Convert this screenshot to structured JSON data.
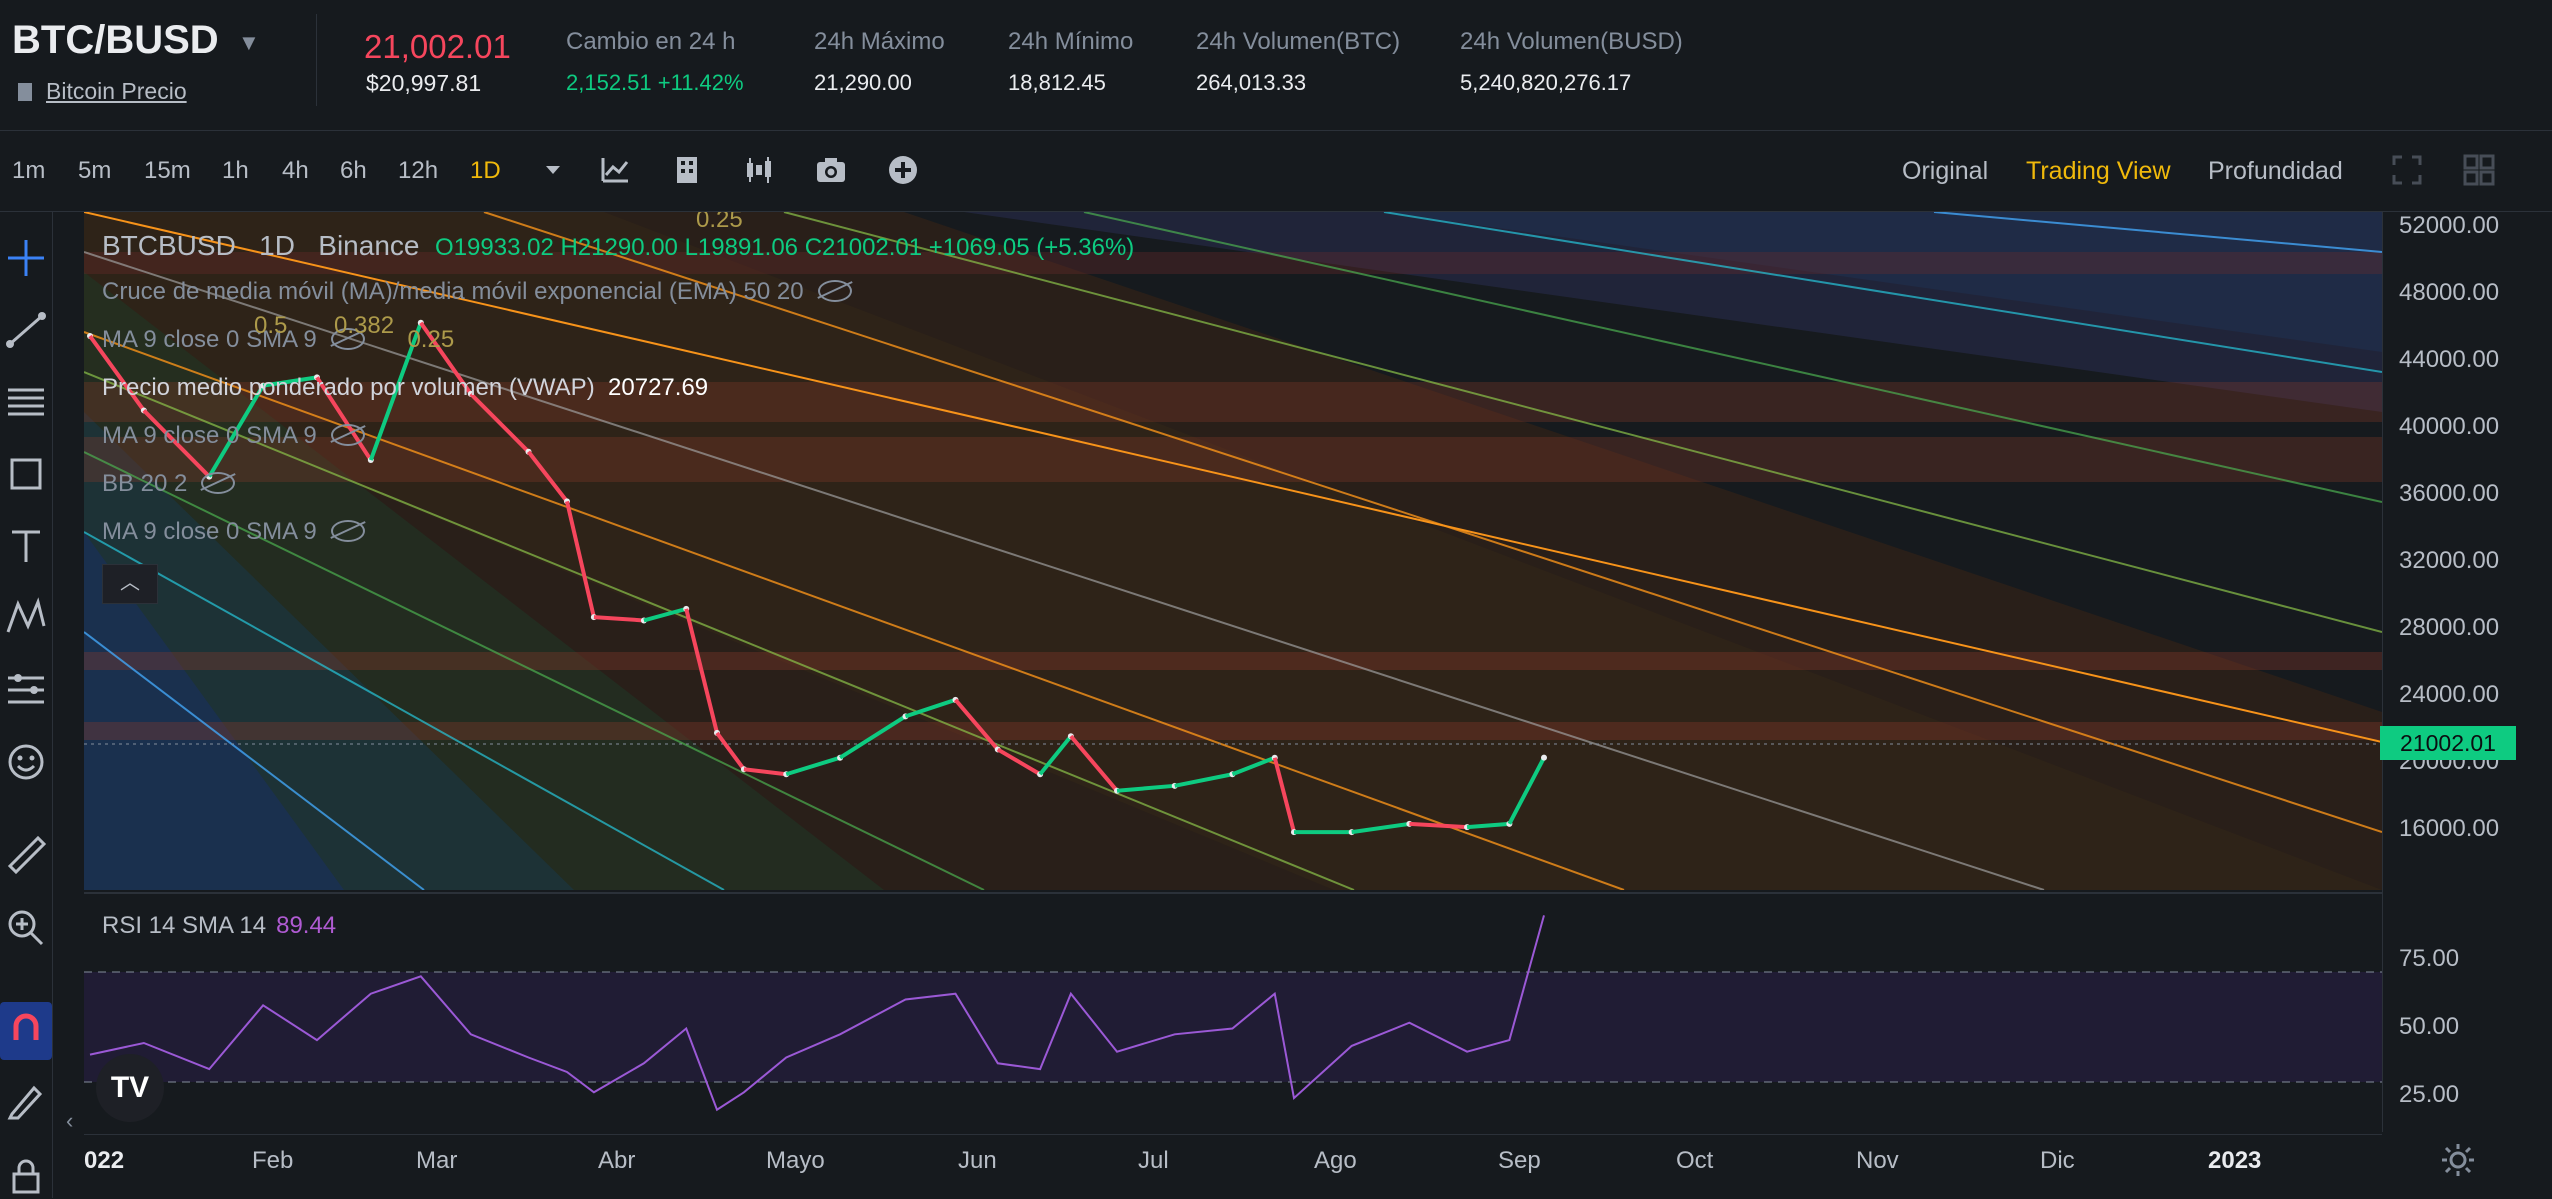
{
  "header": {
    "pair": "BTC/BUSD",
    "subtitle_link": "Bitcoin Precio",
    "last_price": "21,002.01",
    "last_price_usd": "$20,997.81",
    "stats": [
      {
        "label": "Cambio en 24 h",
        "value": "2,152.51 +11.42%"
      },
      {
        "label": "24h Máximo",
        "value": "21,290.00"
      },
      {
        "label": "24h Mínimo",
        "value": "18,812.45"
      },
      {
        "label": "24h Volumen(BTC)",
        "value": "264,013.33"
      },
      {
        "label": "24h Volumen(BUSD)",
        "value": "5,240,820,276.17"
      }
    ]
  },
  "toolbar": {
    "timeframes": [
      "1m",
      "5m",
      "15m",
      "1h",
      "4h",
      "6h",
      "12h",
      "1D"
    ],
    "active_timeframe": "1D",
    "views": [
      "Original",
      "Trading View",
      "Profundidad"
    ],
    "active_view": "Trading View"
  },
  "legend": {
    "symbol": "BTCBUSD",
    "interval": "1D",
    "exchange": "Binance",
    "ohlc": "O19933.02 H21290.00 L19891.06 C21002.01 +1069.05 (+5.36%)",
    "indicators": {
      "ma_cross": "Cruce de media móvil (MA)/media móvil exponencial (EMA) 50 20",
      "ma1": "MA 9 close 0 SMA 9",
      "vwap": "Precio medio ponderado por volumen (VWAP)",
      "vwap_value": "20727.69",
      "ma2": "MA 9 close 0 SMA 9",
      "bb": "BB 20 2",
      "ma3": "MA 9 close 0 SMA 9"
    },
    "fib_labels": [
      "0.5",
      "0.382",
      "0.25",
      "0.25"
    ]
  },
  "price_axis": [
    "52000.00",
    "48000.00",
    "44000.00",
    "40000.00",
    "36000.00",
    "32000.00",
    "28000.00",
    "24000.00",
    "20000.00",
    "16000.00"
  ],
  "last_price_tag": "21002.01",
  "rsi": {
    "label": "RSI 14 SMA 14",
    "value": "89.44",
    "axis": [
      "75.00",
      "50.00",
      "25.00"
    ]
  },
  "time_axis": [
    "022",
    "Feb",
    "Mar",
    "Abr",
    "Mayo",
    "Jun",
    "Jul",
    "Ago",
    "Sep",
    "Oct",
    "Nov",
    "Dic",
    "2023"
  ],
  "chart_data": {
    "type": "line",
    "title": "",
    "ylabel": "",
    "x": [
      "2022-01-01",
      "2022-01-15",
      "2022-02-01",
      "2022-02-15",
      "2022-03-01",
      "2022-03-15",
      "2022-03-28",
      "2022-04-10",
      "2022-04-25",
      "2022-05-05",
      "2022-05-12",
      "2022-05-25",
      "2022-06-05",
      "2022-06-13",
      "2022-06-20",
      "2022-07-01",
      "2022-07-15",
      "2022-08-01",
      "2022-08-14",
      "2022-08-25",
      "2022-09-05",
      "2022-09-13",
      "2022-09-25",
      "2022-10-10",
      "2022-10-25",
      "2022-11-05",
      "2022-11-10",
      "2022-11-25",
      "2022-12-10",
      "2022-12-25",
      "2023-01-05",
      "2023-01-14"
    ],
    "series": [
      {
        "name": "BTCBUSD",
        "values": [
          46500,
          42000,
          38000,
          43500,
          44000,
          39000,
          47300,
          43000,
          39500,
          36500,
          29500,
          29300,
          30000,
          22500,
          20300,
          20000,
          21000,
          23500,
          24500,
          21500,
          20000,
          22300,
          19000,
          19300,
          20000,
          21000,
          16500,
          16500,
          17000,
          16800,
          17000,
          21002
        ]
      }
    ],
    "rsi_values": [
      41,
      45,
      36,
      58,
      46,
      62,
      68,
      48,
      40,
      35,
      28,
      38,
      50,
      22,
      28,
      40,
      48,
      60,
      62,
      38,
      36,
      62,
      42,
      48,
      50,
      62,
      26,
      44,
      52,
      42,
      46,
      89
    ],
    "ylim": [
      13000,
      54000
    ],
    "rsi_ylim": [
      15,
      95
    ]
  }
}
